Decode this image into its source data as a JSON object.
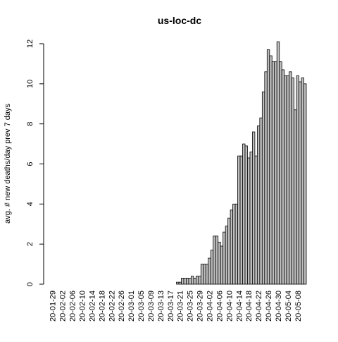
{
  "chart_data": {
    "type": "bar",
    "title": "us-loc-dc",
    "y_label": "avg. # new deaths/day prev  7  days",
    "categories": [
      "20-01-29",
      null,
      null,
      null,
      "20-02-02",
      null,
      null,
      null,
      "20-02-06",
      null,
      null,
      null,
      "20-02-10",
      null,
      null,
      null,
      "20-02-14",
      null,
      null,
      null,
      "20-02-18",
      null,
      null,
      null,
      "20-02-22",
      null,
      null,
      null,
      "20-02-26",
      null,
      null,
      null,
      "20-03-01",
      null,
      null,
      null,
      "20-03-05",
      null,
      null,
      null,
      "20-03-09",
      null,
      null,
      null,
      "20-03-13",
      null,
      null,
      null,
      "20-03-17",
      null,
      null,
      null,
      "20-03-21",
      null,
      null,
      null,
      "20-03-25",
      null,
      null,
      null,
      "20-03-29",
      null,
      null,
      null,
      "20-04-02",
      null,
      null,
      null,
      "20-04-06",
      null,
      null,
      null,
      "20-04-10",
      null,
      null,
      null,
      "20-04-14",
      null,
      null,
      null,
      "20-04-18",
      null,
      null,
      null,
      "20-04-22",
      null,
      null,
      null,
      "20-04-26",
      null,
      null,
      null,
      "20-04-30",
      null,
      null,
      null,
      "20-05-04",
      null,
      null,
      null,
      "20-05-08",
      null,
      null,
      null
    ],
    "values": [
      0,
      0,
      0,
      0,
      0,
      0,
      0,
      0,
      0,
      0,
      0,
      0,
      0,
      0,
      0,
      0,
      0,
      0,
      0,
      0,
      0,
      0,
      0,
      0,
      0,
      0,
      0,
      0,
      0,
      0,
      0,
      0,
      0,
      0,
      0,
      0,
      0,
      0,
      0,
      0,
      0,
      0,
      0,
      0,
      0,
      0,
      0,
      0,
      0,
      0,
      0,
      0.1,
      0.1,
      0.3,
      0.3,
      0.3,
      0.3,
      0.4,
      0.3,
      0.4,
      0.4,
      1,
      1,
      1,
      1.3,
      1.7,
      2.4,
      2.4,
      2.1,
      1.9,
      2.6,
      2.9,
      3.3,
      3.7,
      4,
      4,
      6.4,
      6.4,
      7,
      6.9,
      6.3,
      6.6,
      7.6,
      6.4,
      7.9,
      8.3,
      9.6,
      10.6,
      11.7,
      11.4,
      11.1,
      11.1,
      12.1,
      11.1,
      10.7,
      10.4,
      10.4,
      10.6,
      10.3,
      8.7,
      10.4,
      10.1,
      10.3,
      10
    ],
    "color": "#bebebe",
    "ylim": [
      0,
      12.1
    ],
    "yticks": [
      0,
      2,
      4,
      6,
      8,
      10,
      12
    ]
  }
}
